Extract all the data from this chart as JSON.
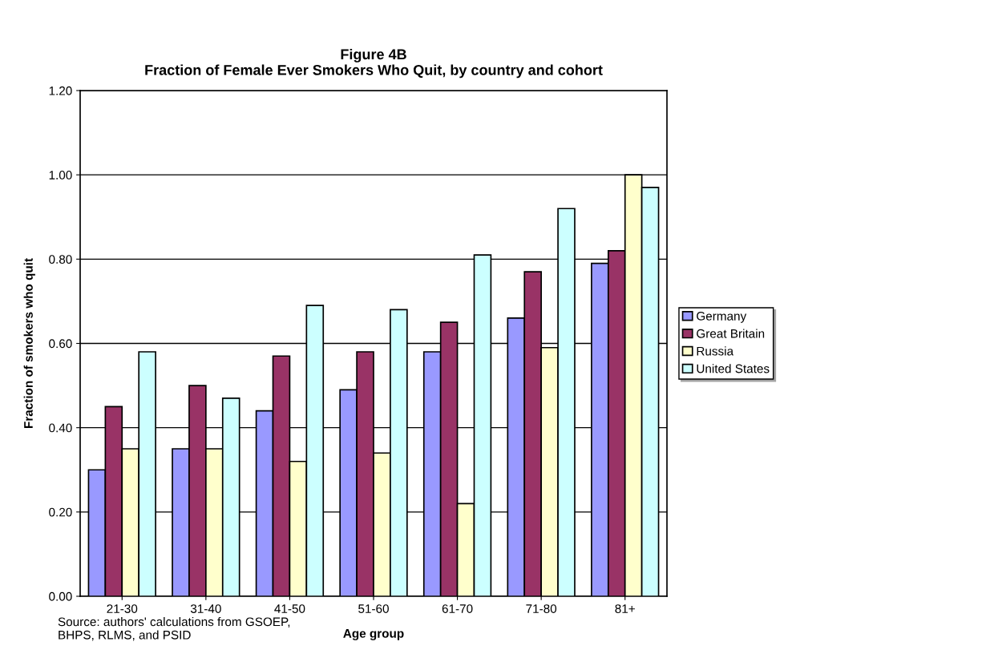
{
  "chart_data": {
    "type": "bar",
    "title": "Figure 4B\nFraction of Female Ever Smokers Who Quit, by country and cohort",
    "xlabel": "Age group",
    "ylabel": "Fraction of smokers who quit",
    "categories": [
      "21-30",
      "31-40",
      "41-50",
      "51-60",
      "61-70",
      "71-80",
      "81+"
    ],
    "series": [
      {
        "name": "Germany",
        "color": "#9999ff",
        "values": [
          0.3,
          0.35,
          0.44,
          0.49,
          0.58,
          0.66,
          0.79
        ]
      },
      {
        "name": "Great Britain",
        "color": "#993366",
        "values": [
          0.45,
          0.5,
          0.57,
          0.58,
          0.65,
          0.77,
          0.82
        ]
      },
      {
        "name": "Russia",
        "color": "#ffffcc",
        "values": [
          0.35,
          0.35,
          0.32,
          0.34,
          0.22,
          0.59,
          1.0
        ]
      },
      {
        "name": "United States",
        "color": "#ccffff",
        "values": [
          0.58,
          0.47,
          0.69,
          0.68,
          0.81,
          0.92,
          0.97
        ]
      }
    ],
    "ylim": [
      0,
      1.2
    ],
    "yticks": [
      {
        "value": 0,
        "label": "0.00"
      },
      {
        "value": 0.2,
        "label": "0.20"
      },
      {
        "value": 0.4,
        "label": "0.40"
      },
      {
        "value": 0.6,
        "label": "0.60"
      },
      {
        "value": 0.8,
        "label": "0.80"
      },
      {
        "value": 1.0,
        "label": "1.00"
      },
      {
        "value": 1.2,
        "label": "1.20"
      }
    ],
    "grid": "y",
    "legend": "right",
    "annotations": [
      "Source: authors' calculations from GSOEP,\nBHPS, RLMS, and PSID"
    ]
  }
}
